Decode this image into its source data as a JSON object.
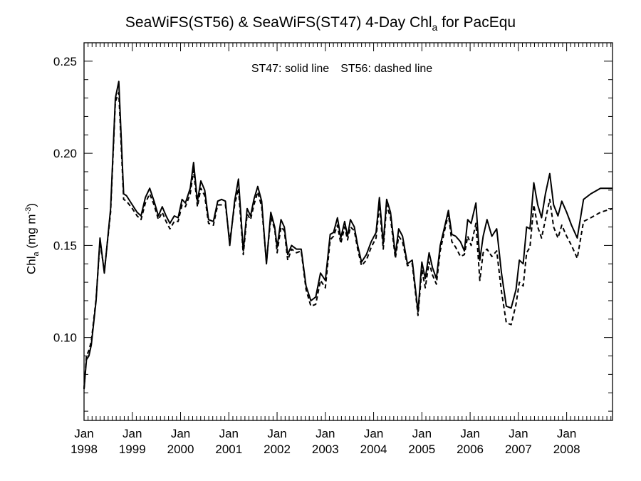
{
  "title": {
    "prefix": "SeaWiFS(ST56) & SeaWiFS(ST47) 4-Day Chl",
    "subscript": "a",
    "suffix": " for PacEqu"
  },
  "annotation": {
    "solid": "ST47: solid line",
    "dashed": "ST56: dashed line"
  },
  "ylabel": {
    "main": "Chl",
    "sub": "a",
    "units_open": " (mg m",
    "units_sup": "-3",
    "units_close": ")"
  },
  "chart_data": {
    "type": "line",
    "title": "SeaWiFS(ST56) & SeaWiFS(ST47) 4-Day Chl_a for PacEqu",
    "ylabel": "Chl_a (mg m^-3)",
    "xlabel": "",
    "xlim": [
      1998.0,
      2008.95
    ],
    "ylim": [
      0.055,
      0.26
    ],
    "yticks": [
      0.1,
      0.15,
      0.2,
      0.25
    ],
    "ytick_labels": [
      "0.10",
      "0.15",
      "0.20",
      "0.25"
    ],
    "xtick_labels": [
      {
        "month": "Jan",
        "year": "1998"
      },
      {
        "month": "Jan",
        "year": "1999"
      },
      {
        "month": "Jan",
        "year": "2000"
      },
      {
        "month": "Jan",
        "year": "2001"
      },
      {
        "month": "Jan",
        "year": "2002"
      },
      {
        "month": "Jan",
        "year": "2003"
      },
      {
        "month": "Jan",
        "year": "2004"
      },
      {
        "month": "Jan",
        "year": "2005"
      },
      {
        "month": "Jan",
        "year": "2006"
      },
      {
        "month": "Jan",
        "year": "2007"
      },
      {
        "month": "Jan",
        "year": "2008"
      }
    ],
    "series": [
      {
        "name": "ST47",
        "style": "solid",
        "points": [
          [
            1998.0,
            0.072
          ],
          [
            1998.05,
            0.088
          ],
          [
            1998.1,
            0.09
          ],
          [
            1998.15,
            0.096
          ],
          [
            1998.25,
            0.12
          ],
          [
            1998.33,
            0.154
          ],
          [
            1998.42,
            0.135
          ],
          [
            1998.55,
            0.17
          ],
          [
            1998.65,
            0.23
          ],
          [
            1998.72,
            0.239
          ],
          [
            1998.82,
            0.178
          ],
          [
            1998.88,
            0.177
          ],
          [
            1999.0,
            0.172
          ],
          [
            1999.1,
            0.168
          ],
          [
            1999.18,
            0.166
          ],
          [
            1999.27,
            0.176
          ],
          [
            1999.36,
            0.181
          ],
          [
            1999.45,
            0.174
          ],
          [
            1999.54,
            0.166
          ],
          [
            1999.62,
            0.171
          ],
          [
            1999.7,
            0.166
          ],
          [
            1999.78,
            0.162
          ],
          [
            1999.87,
            0.166
          ],
          [
            1999.95,
            0.165
          ],
          [
            2000.03,
            0.175
          ],
          [
            2000.1,
            0.173
          ],
          [
            2000.2,
            0.181
          ],
          [
            2000.27,
            0.195
          ],
          [
            2000.35,
            0.174
          ],
          [
            2000.42,
            0.185
          ],
          [
            2000.5,
            0.18
          ],
          [
            2000.58,
            0.164
          ],
          [
            2000.68,
            0.163
          ],
          [
            2000.77,
            0.174
          ],
          [
            2000.85,
            0.175
          ],
          [
            2000.93,
            0.174
          ],
          [
            2001.02,
            0.15
          ],
          [
            2001.12,
            0.174
          ],
          [
            2001.2,
            0.186
          ],
          [
            2001.3,
            0.147
          ],
          [
            2001.38,
            0.17
          ],
          [
            2001.45,
            0.166
          ],
          [
            2001.52,
            0.175
          ],
          [
            2001.6,
            0.182
          ],
          [
            2001.68,
            0.174
          ],
          [
            2001.78,
            0.14
          ],
          [
            2001.87,
            0.168
          ],
          [
            2001.95,
            0.16
          ],
          [
            2002.0,
            0.149
          ],
          [
            2002.08,
            0.164
          ],
          [
            2002.15,
            0.16
          ],
          [
            2002.22,
            0.145
          ],
          [
            2002.3,
            0.15
          ],
          [
            2002.4,
            0.148
          ],
          [
            2002.5,
            0.148
          ],
          [
            2002.6,
            0.128
          ],
          [
            2002.7,
            0.12
          ],
          [
            2002.8,
            0.122
          ],
          [
            2002.9,
            0.135
          ],
          [
            2003.0,
            0.131
          ],
          [
            2003.1,
            0.156
          ],
          [
            2003.17,
            0.157
          ],
          [
            2003.25,
            0.165
          ],
          [
            2003.32,
            0.154
          ],
          [
            2003.4,
            0.163
          ],
          [
            2003.46,
            0.155
          ],
          [
            2003.52,
            0.164
          ],
          [
            2003.6,
            0.16
          ],
          [
            2003.67,
            0.15
          ],
          [
            2003.75,
            0.141
          ],
          [
            2003.85,
            0.145
          ],
          [
            2003.95,
            0.152
          ],
          [
            2004.05,
            0.157
          ],
          [
            2004.12,
            0.176
          ],
          [
            2004.2,
            0.151
          ],
          [
            2004.27,
            0.175
          ],
          [
            2004.35,
            0.168
          ],
          [
            2004.45,
            0.145
          ],
          [
            2004.52,
            0.159
          ],
          [
            2004.6,
            0.155
          ],
          [
            2004.7,
            0.14
          ],
          [
            2004.8,
            0.142
          ],
          [
            2004.92,
            0.114
          ],
          [
            2005.0,
            0.141
          ],
          [
            2005.07,
            0.132
          ],
          [
            2005.15,
            0.146
          ],
          [
            2005.22,
            0.138
          ],
          [
            2005.3,
            0.132
          ],
          [
            2005.38,
            0.15
          ],
          [
            2005.47,
            0.16
          ],
          [
            2005.55,
            0.169
          ],
          [
            2005.62,
            0.156
          ],
          [
            2005.7,
            0.155
          ],
          [
            2005.8,
            0.152
          ],
          [
            2005.88,
            0.147
          ],
          [
            2005.95,
            0.164
          ],
          [
            2006.02,
            0.162
          ],
          [
            2006.12,
            0.173
          ],
          [
            2006.2,
            0.142
          ],
          [
            2006.27,
            0.155
          ],
          [
            2006.35,
            0.164
          ],
          [
            2006.45,
            0.155
          ],
          [
            2006.55,
            0.159
          ],
          [
            2006.65,
            0.135
          ],
          [
            2006.75,
            0.117
          ],
          [
            2006.85,
            0.116
          ],
          [
            2006.95,
            0.126
          ],
          [
            2007.02,
            0.142
          ],
          [
            2007.1,
            0.14
          ],
          [
            2007.17,
            0.16
          ],
          [
            2007.24,
            0.159
          ],
          [
            2007.32,
            0.184
          ],
          [
            2007.4,
            0.172
          ],
          [
            2007.48,
            0.165
          ],
          [
            2007.56,
            0.178
          ],
          [
            2007.65,
            0.189
          ],
          [
            2007.73,
            0.172
          ],
          [
            2007.82,
            0.166
          ],
          [
            2007.9,
            0.174
          ],
          [
            2008.0,
            0.168
          ],
          [
            2008.1,
            0.161
          ],
          [
            2008.22,
            0.154
          ],
          [
            2008.35,
            0.175
          ],
          [
            2008.5,
            0.178
          ],
          [
            2008.7,
            0.181
          ],
          [
            2008.95,
            0.181
          ]
        ]
      },
      {
        "name": "ST56",
        "style": "dashed",
        "points": [
          [
            1998.0,
            0.072
          ],
          [
            1998.05,
            0.09
          ],
          [
            1998.1,
            0.093
          ],
          [
            1998.15,
            0.098
          ],
          [
            1998.25,
            0.121
          ],
          [
            1998.33,
            0.152
          ],
          [
            1998.42,
            0.136
          ],
          [
            1998.55,
            0.168
          ],
          [
            1998.65,
            0.228
          ],
          [
            1998.72,
            0.233
          ],
          [
            1998.82,
            0.175
          ],
          [
            1998.88,
            0.174
          ],
          [
            1999.0,
            0.17
          ],
          [
            1999.1,
            0.166
          ],
          [
            1999.18,
            0.164
          ],
          [
            1999.27,
            0.173
          ],
          [
            1999.36,
            0.178
          ],
          [
            1999.45,
            0.172
          ],
          [
            1999.54,
            0.164
          ],
          [
            1999.62,
            0.168
          ],
          [
            1999.7,
            0.163
          ],
          [
            1999.78,
            0.159
          ],
          [
            1999.87,
            0.163
          ],
          [
            1999.95,
            0.163
          ],
          [
            2000.03,
            0.172
          ],
          [
            2000.1,
            0.171
          ],
          [
            2000.2,
            0.178
          ],
          [
            2000.27,
            0.191
          ],
          [
            2000.35,
            0.171
          ],
          [
            2000.42,
            0.181
          ],
          [
            2000.5,
            0.177
          ],
          [
            2000.58,
            0.162
          ],
          [
            2000.68,
            0.161
          ],
          [
            2000.77,
            0.172
          ],
          [
            2000.85,
            0.172
          ],
          [
            2000.93,
            0.172
          ],
          [
            2001.02,
            0.152
          ],
          [
            2001.12,
            0.172
          ],
          [
            2001.2,
            0.181
          ],
          [
            2001.3,
            0.145
          ],
          [
            2001.38,
            0.167
          ],
          [
            2001.45,
            0.164
          ],
          [
            2001.52,
            0.172
          ],
          [
            2001.6,
            0.179
          ],
          [
            2001.68,
            0.171
          ],
          [
            2001.78,
            0.141
          ],
          [
            2001.87,
            0.165
          ],
          [
            2001.95,
            0.159
          ],
          [
            2002.0,
            0.146
          ],
          [
            2002.08,
            0.16
          ],
          [
            2002.15,
            0.158
          ],
          [
            2002.22,
            0.142
          ],
          [
            2002.3,
            0.148
          ],
          [
            2002.4,
            0.146
          ],
          [
            2002.5,
            0.147
          ],
          [
            2002.6,
            0.126
          ],
          [
            2002.7,
            0.117
          ],
          [
            2002.8,
            0.118
          ],
          [
            2002.9,
            0.131
          ],
          [
            2003.0,
            0.127
          ],
          [
            2003.1,
            0.153
          ],
          [
            2003.17,
            0.155
          ],
          [
            2003.25,
            0.161
          ],
          [
            2003.32,
            0.151
          ],
          [
            2003.4,
            0.16
          ],
          [
            2003.46,
            0.153
          ],
          [
            2003.52,
            0.16
          ],
          [
            2003.6,
            0.158
          ],
          [
            2003.67,
            0.148
          ],
          [
            2003.75,
            0.139
          ],
          [
            2003.85,
            0.142
          ],
          [
            2003.95,
            0.149
          ],
          [
            2004.05,
            0.154
          ],
          [
            2004.12,
            0.172
          ],
          [
            2004.2,
            0.148
          ],
          [
            2004.27,
            0.172
          ],
          [
            2004.35,
            0.165
          ],
          [
            2004.45,
            0.143
          ],
          [
            2004.52,
            0.155
          ],
          [
            2004.6,
            0.152
          ],
          [
            2004.7,
            0.139
          ],
          [
            2004.8,
            0.14
          ],
          [
            2004.92,
            0.112
          ],
          [
            2005.0,
            0.137
          ],
          [
            2005.07,
            0.127
          ],
          [
            2005.15,
            0.141
          ],
          [
            2005.22,
            0.134
          ],
          [
            2005.3,
            0.129
          ],
          [
            2005.38,
            0.147
          ],
          [
            2005.47,
            0.158
          ],
          [
            2005.55,
            0.167
          ],
          [
            2005.62,
            0.152
          ],
          [
            2005.7,
            0.149
          ],
          [
            2005.8,
            0.144
          ],
          [
            2005.88,
            0.145
          ],
          [
            2005.95,
            0.155
          ],
          [
            2006.02,
            0.15
          ],
          [
            2006.12,
            0.162
          ],
          [
            2006.2,
            0.131
          ],
          [
            2006.27,
            0.146
          ],
          [
            2006.35,
            0.148
          ],
          [
            2006.45,
            0.144
          ],
          [
            2006.55,
            0.147
          ],
          [
            2006.65,
            0.125
          ],
          [
            2006.75,
            0.108
          ],
          [
            2006.85,
            0.107
          ],
          [
            2006.95,
            0.118
          ],
          [
            2007.02,
            0.13
          ],
          [
            2007.1,
            0.128
          ],
          [
            2007.17,
            0.146
          ],
          [
            2007.24,
            0.149
          ],
          [
            2007.32,
            0.172
          ],
          [
            2007.4,
            0.16
          ],
          [
            2007.48,
            0.154
          ],
          [
            2007.56,
            0.164
          ],
          [
            2007.65,
            0.175
          ],
          [
            2007.73,
            0.16
          ],
          [
            2007.82,
            0.154
          ],
          [
            2007.9,
            0.161
          ],
          [
            2008.0,
            0.155
          ],
          [
            2008.1,
            0.15
          ],
          [
            2008.22,
            0.143
          ],
          [
            2008.35,
            0.163
          ],
          [
            2008.5,
            0.165
          ],
          [
            2008.7,
            0.168
          ],
          [
            2008.95,
            0.17
          ]
        ]
      }
    ]
  }
}
